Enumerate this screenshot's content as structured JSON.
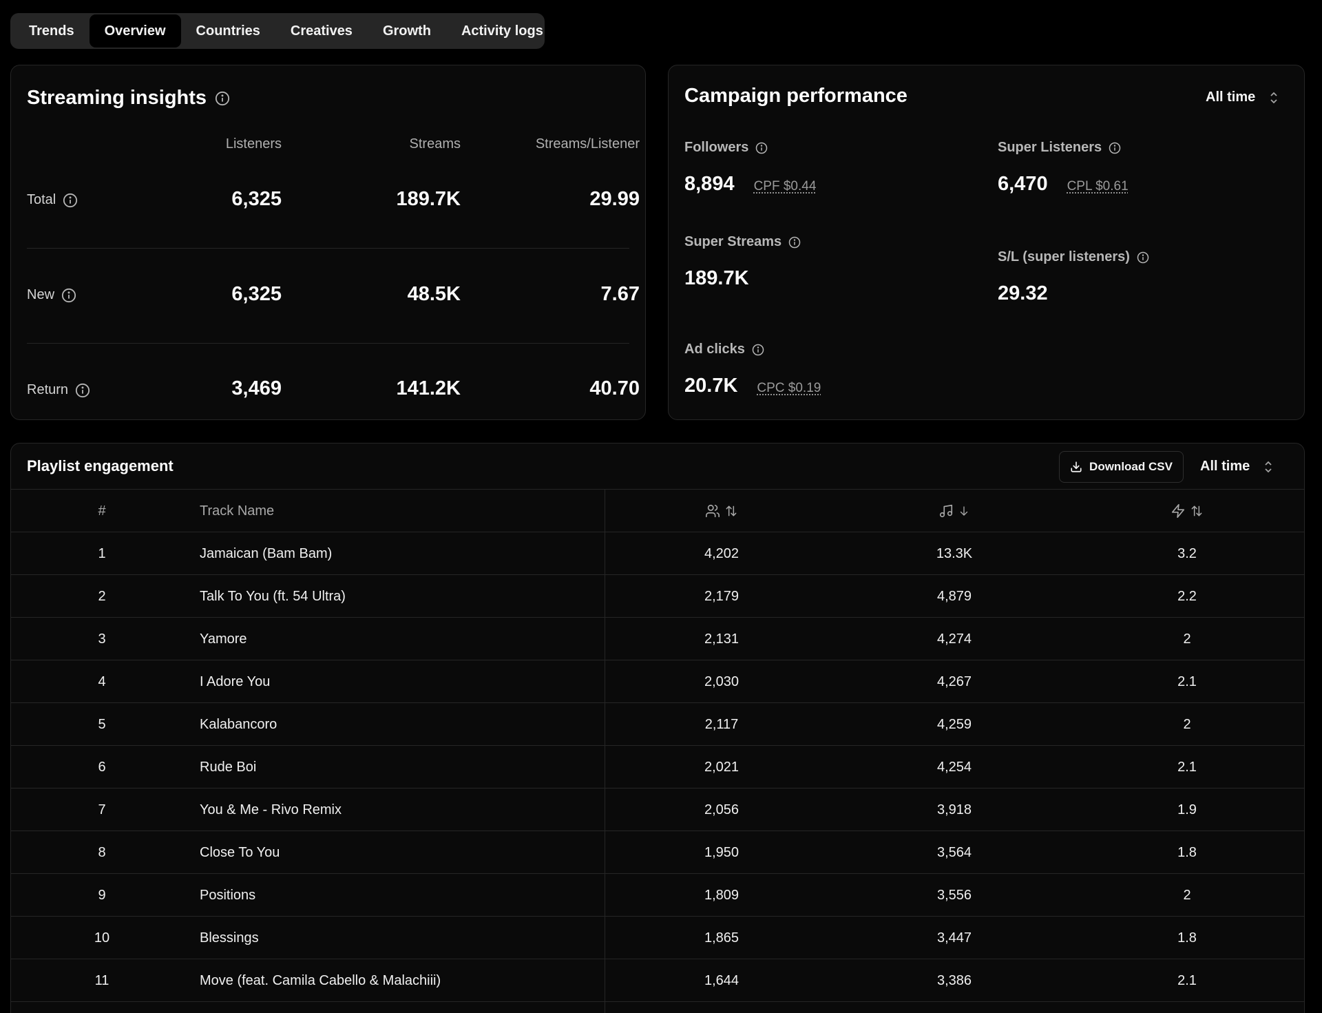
{
  "tabs": [
    {
      "label": "Trends"
    },
    {
      "label": "Overview",
      "active": true
    },
    {
      "label": "Countries"
    },
    {
      "label": "Creatives"
    },
    {
      "label": "Growth"
    },
    {
      "label": "Activity logs"
    }
  ],
  "streaming": {
    "title": "Streaming insights",
    "columns": [
      "Listeners",
      "Streams",
      "Streams/Listener"
    ],
    "rows": [
      {
        "label": "Total",
        "listeners": "6,325",
        "streams": "189.7K",
        "spl": "29.99"
      },
      {
        "label": "New",
        "listeners": "6,325",
        "streams": "48.5K",
        "spl": "7.67"
      },
      {
        "label": "Return",
        "listeners": "3,469",
        "streams": "141.2K",
        "spl": "40.70"
      }
    ]
  },
  "campaign": {
    "title": "Campaign performance",
    "range": "All time",
    "followers": {
      "label": "Followers",
      "value": "8,894",
      "sub": "CPF $0.44"
    },
    "super_listeners": {
      "label": "Super Listeners",
      "value": "6,470",
      "sub": "CPL $0.61"
    },
    "super_streams": {
      "label": "Super Streams",
      "value": "189.7K"
    },
    "sl_ratio": {
      "label": "S/L (super listeners)",
      "value": "29.32"
    },
    "ad_clicks": {
      "label": "Ad clicks",
      "value": "20.7K",
      "sub": "CPC $0.19"
    }
  },
  "playlist": {
    "title": "Playlist engagement",
    "download_label": "Download CSV",
    "range": "All time",
    "columns": {
      "num": "#",
      "name": "Track Name"
    },
    "column_icons": [
      "users-icon",
      "music-note-icon",
      "lightning-icon"
    ],
    "rows": [
      {
        "num": "1",
        "name": "Jamaican (Bam Bam)",
        "a": "4,202",
        "b": "13.3K",
        "c": "3.2"
      },
      {
        "num": "2",
        "name": "Talk To You (ft. 54 Ultra)",
        "a": "2,179",
        "b": "4,879",
        "c": "2.2"
      },
      {
        "num": "3",
        "name": "Yamore",
        "a": "2,131",
        "b": "4,274",
        "c": "2"
      },
      {
        "num": "4",
        "name": "I Adore You",
        "a": "2,030",
        "b": "4,267",
        "c": "2.1"
      },
      {
        "num": "5",
        "name": "Kalabancoro",
        "a": "2,117",
        "b": "4,259",
        "c": "2"
      },
      {
        "num": "6",
        "name": "Rude Boi",
        "a": "2,021",
        "b": "4,254",
        "c": "2.1"
      },
      {
        "num": "7",
        "name": "You & Me - Rivo Remix",
        "a": "2,056",
        "b": "3,918",
        "c": "1.9"
      },
      {
        "num": "8",
        "name": "Close To You",
        "a": "1,950",
        "b": "3,564",
        "c": "1.8"
      },
      {
        "num": "9",
        "name": "Positions",
        "a": "1,809",
        "b": "3,556",
        "c": "2"
      },
      {
        "num": "10",
        "name": "Blessings",
        "a": "1,865",
        "b": "3,447",
        "c": "1.8"
      },
      {
        "num": "11",
        "name": "Move (feat. Camila Cabello & Malachiii)",
        "a": "1,644",
        "b": "3,386",
        "c": "2.1"
      }
    ]
  },
  "colors": {
    "background": "#000000",
    "card": "#0a0a0a",
    "border": "#262626",
    "tabs_bg": "#262626",
    "muted_text": "#a8a8a8"
  }
}
